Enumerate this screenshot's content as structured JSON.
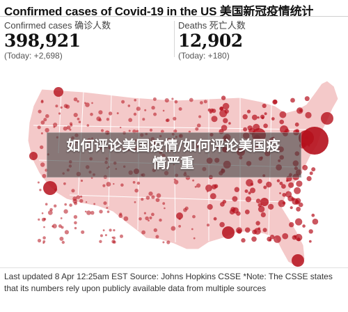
{
  "headline": "Confirmed cases of Covid-19 in the US 美国新冠疫情统计",
  "stats": {
    "confirmed": {
      "label": "Confirmed cases 确诊人数",
      "value": "398,921",
      "today": "(Today: +2,698)"
    },
    "deaths": {
      "label": "Deaths 死亡人数",
      "value": "12,902",
      "today": "(Today: +180)"
    }
  },
  "overlay": {
    "line1": "如何评论美国疫情/如何评论美国疫",
    "line2": "情严重"
  },
  "footer": "Last updated 8 Apr 12:25am EST Source: Johns Hopkins CSSE *Note: The CSSE states that its numbers rely upon publicly available data from multiple sources",
  "colors": {
    "map_fill": "#f4c9c9",
    "map_border": "#ffffff",
    "bubble": "#b5101c",
    "overlay": "#464646"
  }
}
